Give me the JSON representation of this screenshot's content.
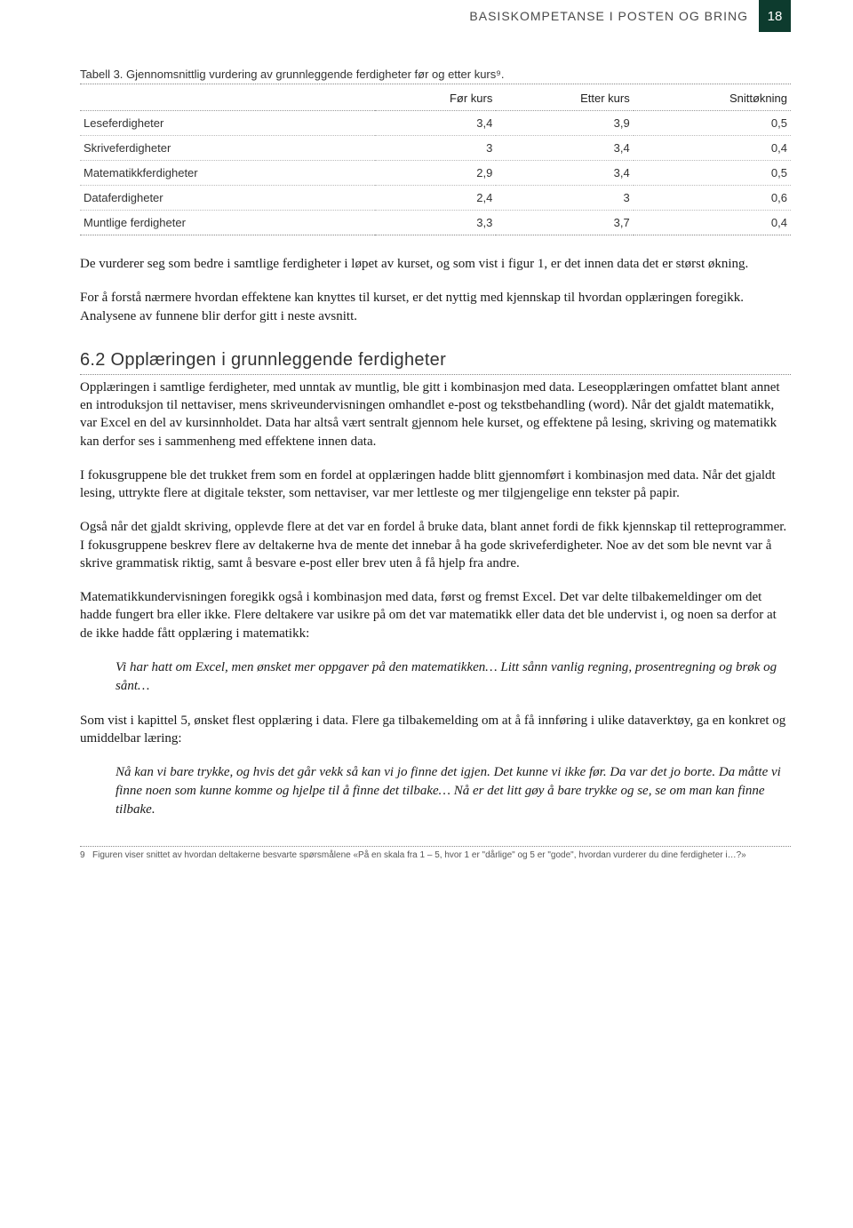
{
  "header": {
    "title": "BASISKOMPETANSE I POSTEN OG BRING",
    "page_number": "18"
  },
  "table": {
    "type": "table",
    "caption": "Tabell 3. Gjennomsnittlig vurdering av grunnleggende ferdigheter før og etter kurs⁹.",
    "columns": [
      "",
      "Før kurs",
      "Etter kurs",
      "Snittøkning"
    ],
    "col_align": [
      "left",
      "right",
      "right",
      "right"
    ],
    "rows": [
      [
        "Leseferdigheter",
        "3,4",
        "3,9",
        "0,5"
      ],
      [
        "Skriveferdigheter",
        "3",
        "3,4",
        "0,4"
      ],
      [
        "Matematikkferdigheter",
        "2,9",
        "3,4",
        "0,5"
      ],
      [
        "Dataferdigheter",
        "2,4",
        "3",
        "0,6"
      ],
      [
        "Muntlige ferdigheter",
        "3,3",
        "3,7",
        "0,4"
      ]
    ],
    "fontsize": 13,
    "border_color": "#bbbbbb",
    "background_color": "#ffffff"
  },
  "paragraphs": {
    "p1": "De vurderer seg som bedre i samtlige ferdigheter i løpet av kurset, og som vist i figur 1, er det innen data det er størst økning.",
    "p2": "For å forstå nærmere hvordan effektene kan knyttes til kurset, er det nyttig med kjennskap til hvordan opplæringen foregikk. Analysene av funnene blir derfor gitt i neste avsnitt."
  },
  "section": {
    "heading": "6.2 Opplæringen i grunnleggende ferdigheter",
    "p1": "Opplæringen i samtlige ferdigheter, med unntak av muntlig, ble gitt i kombinasjon med data. Leseopplæringen omfattet blant annet en introduksjon til nettaviser, mens skriveundervisningen omhandlet e-post og tekstbehandling (word). Når det gjaldt matematikk, var Excel en del av kursinnholdet. Data har altså vært sentralt gjennom hele kurset, og effektene på lesing, skriving og matematikk kan derfor ses i sammenheng med effektene innen data.",
    "p2": "I fokusgruppene ble det trukket frem som en fordel at opplæringen hadde blitt gjennomført i kombinasjon med data. Når det gjaldt lesing, uttrykte flere at digitale tekster, som nettaviser, var mer lettleste og mer tilgjengelige enn tekster på papir.",
    "p3": "Også når det gjaldt skriving, opplevde flere at det var en fordel å bruke data, blant annet fordi de fikk kjennskap til retteprogrammer. I fokusgruppene beskrev flere av deltakerne hva de mente det innebar å ha gode skriveferdigheter. Noe av det som ble nevnt var å skrive grammatisk riktig, samt å besvare e-post eller brev uten å få hjelp fra andre.",
    "p4": "Matematikkundervisningen foregikk også i kombinasjon med data, først og fremst Excel. Det var delte tilbakemeldinger om det hadde fungert bra eller ikke. Flere deltakere var usikre på om det var matematikk eller data det ble undervist i, og noen sa derfor at de ikke hadde fått opplæring i matematikk:",
    "quote1": "Vi har hatt om Excel, men ønsket mer oppgaver på den matematikken… Litt sånn vanlig regning, prosentregning og brøk og sånt…",
    "p5": "Som vist i kapittel 5, ønsket flest opplæring i data. Flere ga tilbakemelding om at å få innføring i ulike dataverktøy, ga en konkret og umiddelbar læring:",
    "quote2": "Nå kan vi bare trykke, og hvis det går vekk så kan vi jo finne det igjen. Det kunne vi ikke før. Da var det jo borte. Da måtte vi finne noen som kunne komme og hjelpe til å finne det tilbake… Nå er det litt gøy å bare trykke og se, se om man kan finne tilbake."
  },
  "footnote": {
    "num": "9",
    "text": "Figuren viser snittet av hvordan deltakerne besvarte spørsmålene «På en skala fra 1 – 5, hvor 1 er \"dårlige\" og 5 er \"gode\", hvordan vurderer du dine ferdigheter i…?»"
  },
  "colors": {
    "page_bg": "#ffffff",
    "header_badge_bg": "#0d3b2e",
    "header_badge_fg": "#ffffff",
    "text": "#1a1a1a",
    "dotted_rule": "#888888"
  },
  "typography": {
    "body_font": "Georgia, Times New Roman, serif",
    "ui_font": "Arial, Helvetica, sans-serif",
    "body_size_pt": 11,
    "heading_size_pt": 15
  }
}
